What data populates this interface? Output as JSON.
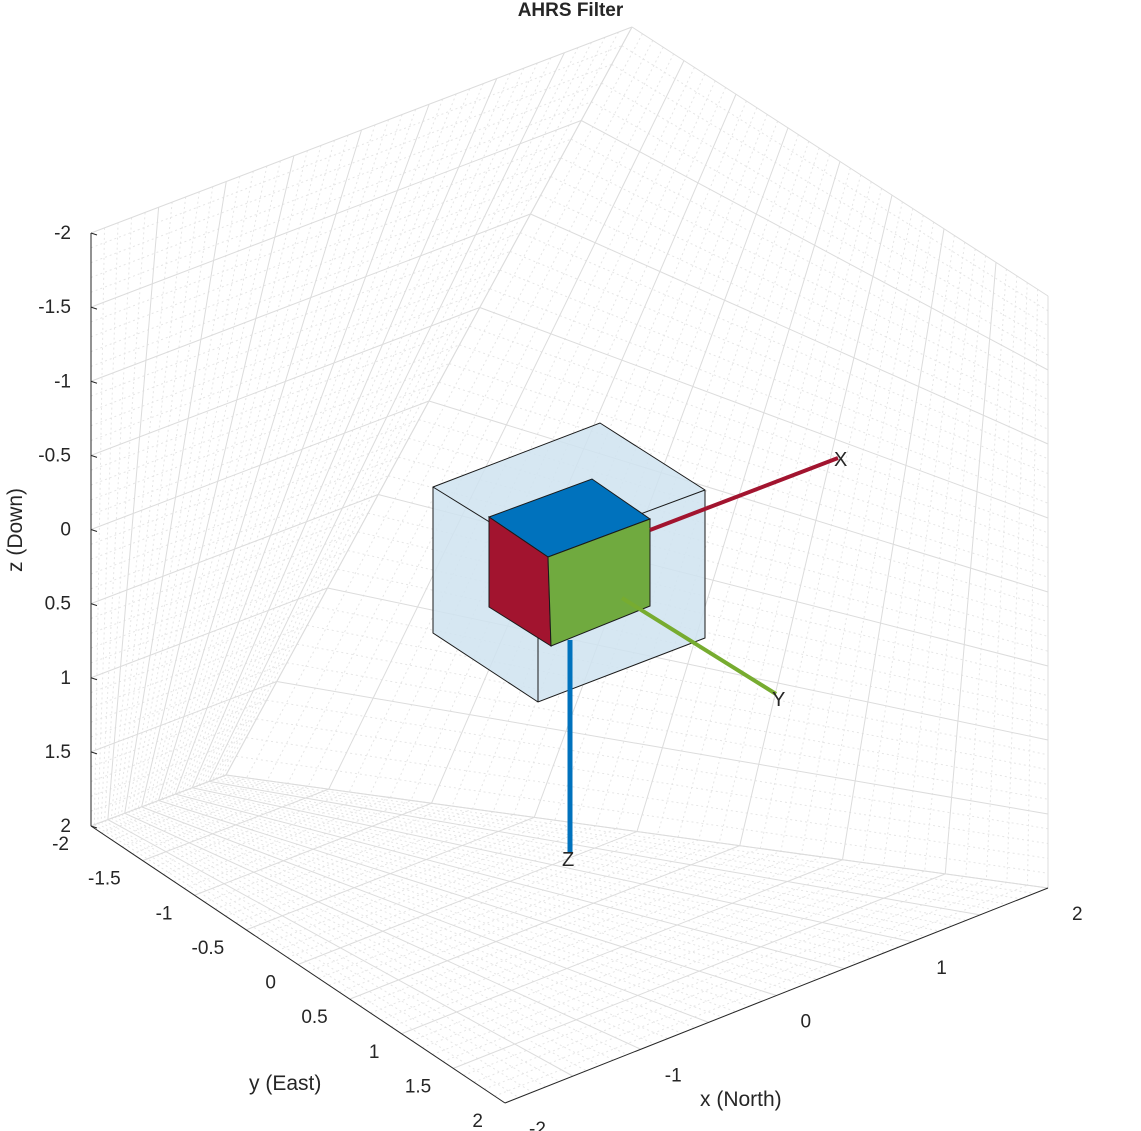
{
  "chart_data": {
    "type": "3d-orientation",
    "title": "AHRS Filter",
    "xlabel": "x (North)",
    "ylabel": "y (East)",
    "zlabel": "z (Down)",
    "xlim": [
      -2,
      2
    ],
    "ylim": [
      -2,
      2
    ],
    "zlim": [
      -2,
      2
    ],
    "zdir": "reverse",
    "grid": true,
    "minor_grid": true,
    "x_ticks": [
      "-2",
      "-1",
      "0",
      "1",
      "2"
    ],
    "y_ticks": [
      "-2",
      "-1.5",
      "-1",
      "-0.5",
      "0",
      "0.5",
      "1",
      "1.5",
      "2"
    ],
    "z_ticks": [
      "-2",
      "-1.5",
      "-1",
      "-0.5",
      "0",
      "0.5",
      "1",
      "1.5",
      "2"
    ],
    "body_vectors": [
      {
        "label": "X",
        "color": "#A2142F"
      },
      {
        "label": "Y",
        "color": "#77AC30"
      },
      {
        "label": "Z",
        "color": "#0072BD"
      }
    ],
    "box_face_colors": {
      "top": "#0072BD",
      "side_x": "#A2142F",
      "side_y": "#70AA3F"
    },
    "bounding_box_color": "#cfe3f0"
  }
}
